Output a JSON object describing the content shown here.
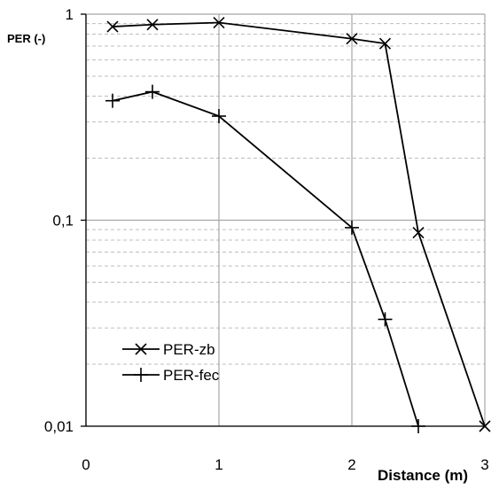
{
  "chart_data": {
    "type": "line",
    "title": "",
    "xlabel": "Distance (m)",
    "ylabel": "PER (-)",
    "xlim": [
      0,
      3
    ],
    "ylim": [
      0.01,
      1
    ],
    "yscale": "log",
    "grid": true,
    "x_ticks": [
      0,
      1,
      2,
      3
    ],
    "x_tick_labels": [
      "0",
      "1",
      "2",
      "3"
    ],
    "y_ticks": [
      0.01,
      0.1,
      1
    ],
    "y_tick_labels": [
      "0,01",
      "0,1",
      "1"
    ],
    "legend_position": "bottom-left",
    "series": [
      {
        "name": "PER-zb",
        "marker": "x",
        "color": "#000000",
        "x": [
          0.2,
          0.5,
          1.0,
          2.0,
          2.25,
          2.5,
          3.0
        ],
        "y": [
          0.87,
          0.89,
          0.91,
          0.76,
          0.72,
          0.087,
          0.01
        ]
      },
      {
        "name": "PER-fec",
        "marker": "+",
        "color": "#000000",
        "x": [
          0.2,
          0.5,
          1.0,
          2.0,
          2.25,
          2.5
        ],
        "y": [
          0.38,
          0.42,
          0.32,
          0.092,
          0.033,
          0.01
        ]
      }
    ]
  }
}
